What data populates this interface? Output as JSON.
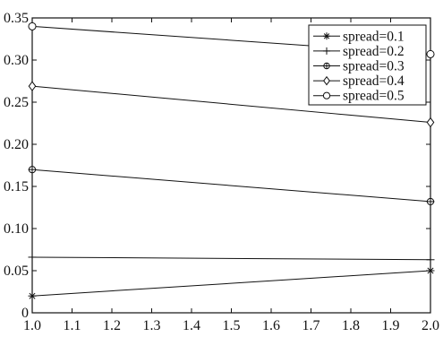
{
  "chart_data": {
    "type": "line",
    "x": [
      1.0,
      2.0
    ],
    "xlim": [
      1.0,
      2.0
    ],
    "ylim": [
      0,
      0.35
    ],
    "xticks": [
      "1.0",
      "1.1",
      "1.2",
      "1.3",
      "1.4",
      "1.5",
      "1.6",
      "1.7",
      "1.8",
      "1.9",
      "2.0"
    ],
    "yticks": [
      "0",
      "0.05",
      "0.10",
      "0.15",
      "0.20",
      "0.25",
      "0.30",
      "0.35"
    ],
    "grid": false,
    "legend_position": "top-right",
    "series": [
      {
        "name": "spread=0.1",
        "marker": "asterisk",
        "values": [
          0.02,
          0.05
        ]
      },
      {
        "name": "spread=0.2",
        "marker": "plus",
        "values": [
          0.066,
          0.063
        ]
      },
      {
        "name": "spread=0.3",
        "marker": "circle-plus",
        "values": [
          0.17,
          0.132
        ]
      },
      {
        "name": "spread=0.4",
        "marker": "diamond",
        "values": [
          0.269,
          0.226
        ]
      },
      {
        "name": "spread=0.5",
        "marker": "circle",
        "values": [
          0.34,
          0.307
        ]
      }
    ]
  }
}
